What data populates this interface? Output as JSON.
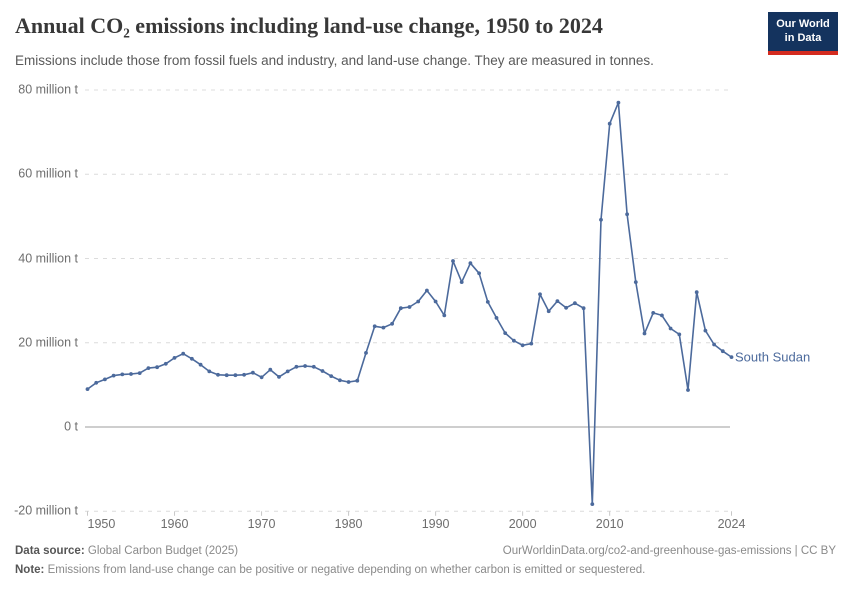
{
  "header": {
    "title": "Annual CO₂ emissions including land-use change, 1950 to 2024",
    "subtitle": "Emissions include those from fossil fuels and industry, and land-use change. They are measured in tonnes.",
    "logo_line1": "Our World",
    "logo_line2": "in Data"
  },
  "chart_data": {
    "type": "line",
    "title": "Annual CO₂ emissions including land-use change, 1950 to 2024",
    "entity": "South Sudan",
    "unit": "million tonnes",
    "xlim": [
      1950,
      2024
    ],
    "ylim": [
      -20,
      80
    ],
    "grid": "horizontal dashed",
    "legend_position": "line-end label",
    "x_ticks": [
      {
        "v": 1950,
        "label": "1950"
      },
      {
        "v": 1960,
        "label": "1960"
      },
      {
        "v": 1970,
        "label": "1970"
      },
      {
        "v": 1980,
        "label": "1980"
      },
      {
        "v": 1990,
        "label": "1990"
      },
      {
        "v": 2000,
        "label": "2000"
      },
      {
        "v": 2010,
        "label": "2010"
      },
      {
        "v": 2024,
        "label": "2024"
      }
    ],
    "y_ticks": [
      {
        "v": 80,
        "label": "80 million t"
      },
      {
        "v": 60,
        "label": "60 million t"
      },
      {
        "v": 40,
        "label": "40 million t"
      },
      {
        "v": 20,
        "label": "20 million t"
      },
      {
        "v": 0,
        "label": "0 t"
      },
      {
        "v": -20,
        "label": "-20 million t"
      }
    ],
    "years": [
      1950,
      1951,
      1952,
      1953,
      1954,
      1955,
      1956,
      1957,
      1958,
      1959,
      1960,
      1961,
      1962,
      1963,
      1964,
      1965,
      1966,
      1967,
      1968,
      1969,
      1970,
      1971,
      1972,
      1973,
      1974,
      1975,
      1976,
      1977,
      1978,
      1979,
      1980,
      1981,
      1982,
      1983,
      1984,
      1985,
      1986,
      1987,
      1988,
      1989,
      1990,
      1991,
      1992,
      1993,
      1994,
      1995,
      1996,
      1997,
      1998,
      1999,
      2000,
      2001,
      2002,
      2003,
      2004,
      2005,
      2006,
      2007,
      2008,
      2009,
      2010,
      2011,
      2012,
      2013,
      2014,
      2015,
      2016,
      2017,
      2018,
      2019,
      2020,
      2021,
      2022,
      2023,
      2024
    ],
    "values": [
      9.0,
      10.5,
      11.3,
      12.2,
      12.5,
      12.6,
      12.8,
      14.0,
      14.2,
      15.0,
      16.4,
      17.4,
      16.2,
      14.8,
      13.2,
      12.4,
      12.3,
      12.3,
      12.4,
      12.9,
      11.8,
      13.6,
      11.9,
      13.2,
      14.3,
      14.5,
      14.3,
      13.3,
      12.1,
      11.1,
      10.7,
      11.0,
      17.6,
      23.9,
      23.6,
      24.5,
      28.2,
      28.5,
      29.8,
      32.4,
      29.8,
      26.5,
      39.4,
      34.4,
      38.9,
      36.5,
      29.7,
      25.9,
      22.3,
      20.5,
      19.4,
      19.8,
      31.5,
      27.5,
      29.9,
      28.3,
      29.4,
      28.2,
      -18.3,
      49.2,
      72.0,
      77.0,
      50.5,
      34.4,
      22.2,
      27.1,
      26.5,
      23.4,
      22.0,
      8.8,
      32.0,
      22.9,
      19.6,
      18.0,
      16.6
    ],
    "colors": {
      "line": "#4c6a9c",
      "grid": "#dcdcdc",
      "zero_line": "#9e9e9e",
      "tick": "#c8c8c8",
      "axis_text": "#6e6e6e"
    }
  },
  "footer": {
    "source_label": "Data source:",
    "source_value": "Global Carbon Budget (2025)",
    "link": "OurWorldinData.org/co2-and-greenhouse-gas-emissions | CC BY",
    "note_label": "Note:",
    "note_text": "Emissions from land-use change can be positive or negative depending on whether carbon is emitted or sequestered."
  },
  "logo_colors": {
    "navy": "#14335e",
    "red": "#d42b1f"
  }
}
